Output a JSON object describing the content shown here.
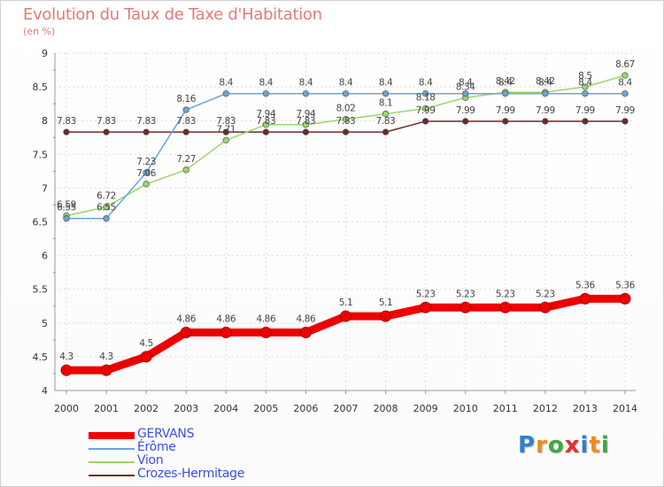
{
  "chart_data": {
    "type": "line",
    "title": "Evolution du Taux de Taxe d'Habitation",
    "subtitle": "(en %)",
    "ylim": [
      4,
      9
    ],
    "yticks": [
      "4",
      "4.5",
      "5",
      "5.5",
      "6",
      "6.5",
      "7",
      "7.5",
      "8",
      "8.5",
      "9"
    ],
    "ytick_values": [
      4,
      4.5,
      5,
      5.5,
      6,
      6.5,
      7,
      7.5,
      8,
      8.5,
      9
    ],
    "x": [
      "2000",
      "2001",
      "2002",
      "2003",
      "2004",
      "2005",
      "2006",
      "2007",
      "2008",
      "2009",
      "2010",
      "2011",
      "2012",
      "2013",
      "2014"
    ],
    "series": [
      {
        "name": "Crozes-Hermitage",
        "color": "#6b2a2a",
        "values": [
          7.83,
          7.83,
          7.83,
          7.83,
          7.83,
          7.83,
          7.83,
          7.83,
          7.83,
          7.99,
          7.99,
          7.99,
          7.99,
          7.99,
          7.99
        ],
        "labels": [
          "7.83",
          "7.83",
          "7.83",
          "7.83",
          "7.83",
          "7.83",
          "7.83",
          "7.83",
          "7.83",
          "7.99",
          "7.99",
          "7.99",
          "7.99",
          "7.99",
          "7.99"
        ]
      },
      {
        "name": "Vion",
        "color": "#9ad66b",
        "values": [
          6.59,
          6.72,
          7.06,
          7.27,
          7.71,
          7.94,
          7.94,
          8.02,
          8.1,
          8.18,
          8.34,
          8.42,
          8.42,
          8.5,
          8.67
        ],
        "labels": [
          "6.59",
          "6.72",
          "7.06",
          "7.27",
          "7.71",
          "7.94",
          "7.94",
          "8.02",
          "8.1",
          "8.18",
          "8.34",
          "8.42",
          "8.42",
          "8.5",
          "8.67"
        ]
      },
      {
        "name": "Érôme",
        "color": "#6aa5d6",
        "values": [
          6.55,
          6.55,
          7.23,
          8.16,
          8.4,
          8.4,
          8.4,
          8.4,
          8.4,
          8.4,
          8.4,
          8.4,
          8.4,
          8.4,
          8.4
        ],
        "labels": [
          "6.55",
          "6.55",
          "7.23",
          "8.16",
          "8.4",
          "8.4",
          "8.4",
          "8.4",
          "8.4",
          "8.4",
          "8.4",
          "8.4",
          "8.4",
          "8.4",
          "8.4"
        ]
      },
      {
        "name": "GERVANS",
        "color": "#ee0000",
        "values": [
          4.3,
          4.3,
          4.5,
          4.86,
          4.86,
          4.86,
          4.86,
          5.1,
          5.1,
          5.23,
          5.23,
          5.23,
          5.23,
          5.36,
          5.36
        ],
        "labels": [
          "4.3",
          "4.3",
          "4.5",
          "4.86",
          "4.86",
          "4.86",
          "4.86",
          "5.1",
          "5.1",
          "5.23",
          "5.23",
          "5.23",
          "5.23",
          "5.36",
          "5.36"
        ]
      }
    ],
    "legend": [
      {
        "name": "GERVANS",
        "color": "#ee0000"
      },
      {
        "name": "Érôme",
        "color": "#6aa5d6"
      },
      {
        "name": "Vion",
        "color": "#9ad66b"
      },
      {
        "name": "Crozes-Hermitage",
        "color": "#6b2a2a"
      }
    ],
    "legend_position": "bottom-left",
    "grid": true
  },
  "logo": {
    "text": "Proxiti",
    "colors": [
      "#2f7fd1",
      "#f08a1c",
      "#3fa93f",
      "#e03030",
      "#2f7fd1",
      "#f08a1c",
      "#3fa93f"
    ]
  }
}
